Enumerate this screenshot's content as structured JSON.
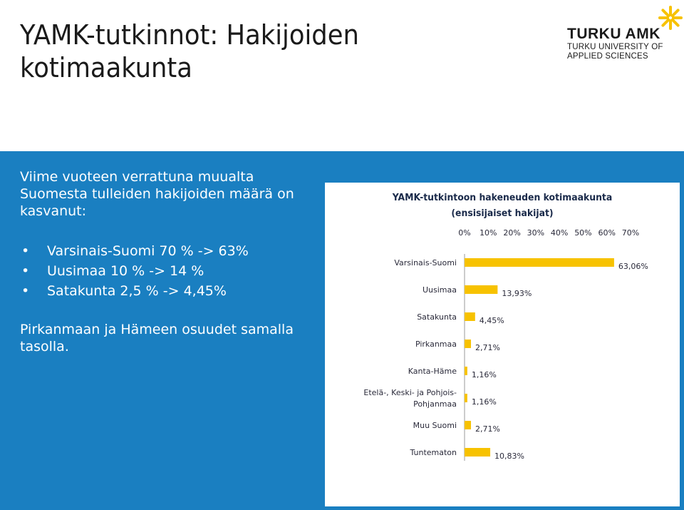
{
  "slide": {
    "title_line1": "YAMK-tutkinnot: Hakijoiden",
    "title_line2": "kotimaakunta"
  },
  "logo": {
    "name": "TURKU AMK",
    "subtitle_line1": "TURKU UNIVERSITY OF",
    "subtitle_line2": "APPLIED SCIENCES",
    "star_color": "#f7c200"
  },
  "left_panel": {
    "intro": "Viime vuoteen verrattuna muualta Suomesta tulleiden hakijoiden määrä on kasvanut:",
    "bullet_symbol": "•",
    "bullets": [
      "Varsinais-Suomi 70 % -> 63%",
      "Uusimaa 10 % -> 14 %",
      "Satakunta 2,5 % -> 4,45%"
    ],
    "footer": "Pirkanmaan ja Hämeen osuudet samalla tasolla."
  },
  "colors": {
    "panel_bg": "#1a7fc1",
    "bar_fill": "#f7c200",
    "text": "#1a1a1a"
  },
  "chart_data": {
    "type": "bar",
    "orientation": "horizontal",
    "title": "YAMK-tutkintoon hakeneuden kotimaakunta",
    "subtitle": "(ensisijaiset hakijat)",
    "categories": [
      "Varsinais-Suomi",
      "Uusimaa",
      "Satakunta",
      "Pirkanmaa",
      "Kanta-Häme",
      "Etelä-, Keski- ja Pohjois-Pohjanmaa",
      "Muu Suomi",
      "Tuntematon"
    ],
    "category_lines": [
      [
        "Varsinais-Suomi"
      ],
      [
        "Uusimaa"
      ],
      [
        "Satakunta"
      ],
      [
        "Pirkanmaa"
      ],
      [
        "Kanta-Häme"
      ],
      [
        "Etelä-, Keski- ja Pohjois-",
        "Pohjanmaa"
      ],
      [
        "Muu Suomi"
      ],
      [
        "Tuntematon"
      ]
    ],
    "values": [
      63.06,
      13.93,
      4.45,
      2.71,
      1.16,
      1.16,
      2.71,
      10.83
    ],
    "data_labels": [
      "63,06%",
      "13,93%",
      "4,45%",
      "2,71%",
      "1,16%",
      "1,16%",
      "2,71%",
      "10,83%"
    ],
    "xlim": [
      0,
      70
    ],
    "xticks": [
      "0%",
      "10%",
      "20%",
      "30%",
      "40%",
      "50%",
      "60%",
      "70%"
    ],
    "axis_position": "top",
    "grid": false,
    "legend": "none"
  }
}
